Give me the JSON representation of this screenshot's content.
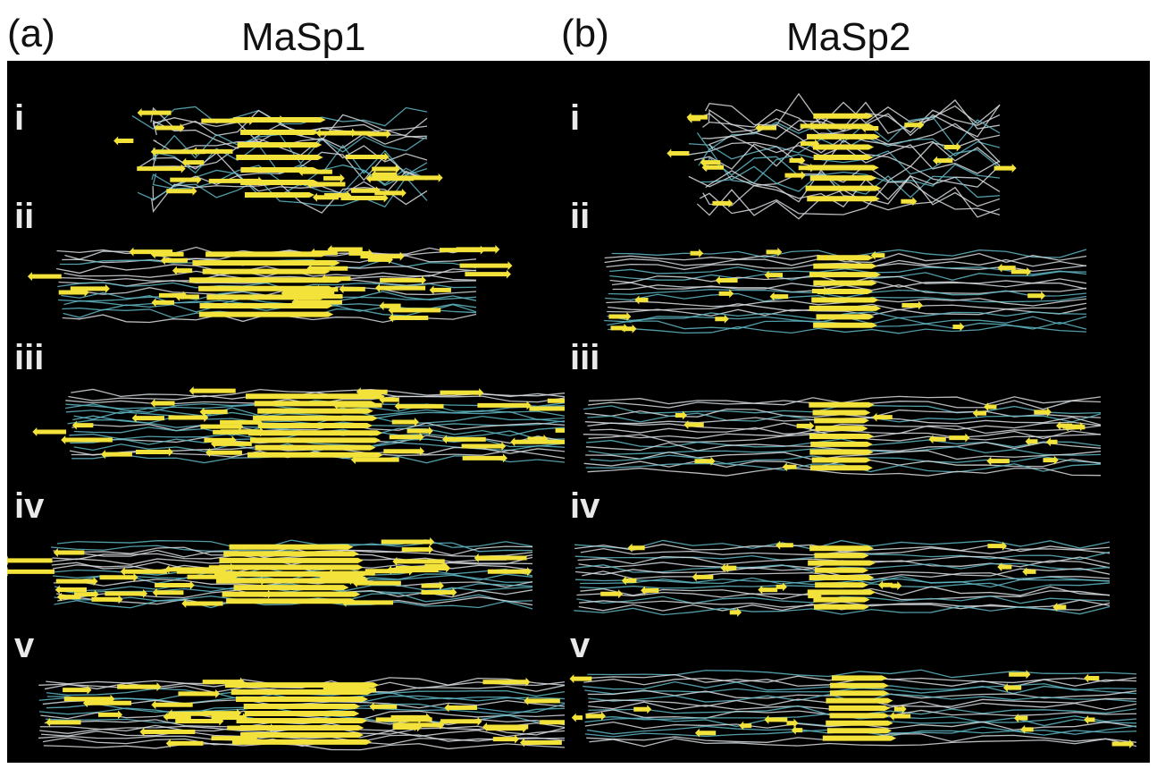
{
  "figure": {
    "panels": [
      {
        "key": "a",
        "label": "(a)",
        "title": "MaSp1",
        "stages": [
          "i",
          "ii",
          "iii",
          "iv",
          "v"
        ]
      },
      {
        "key": "b",
        "label": "(b)",
        "title": "MaSp2",
        "stages": [
          "i",
          "ii",
          "iii",
          "iv",
          "v"
        ]
      }
    ],
    "colors": {
      "background": "#000000",
      "beta_sheet": "#f2e23a",
      "coil_light": "#d8dde0",
      "coil_cyan": "#5fb7c4"
    }
  }
}
